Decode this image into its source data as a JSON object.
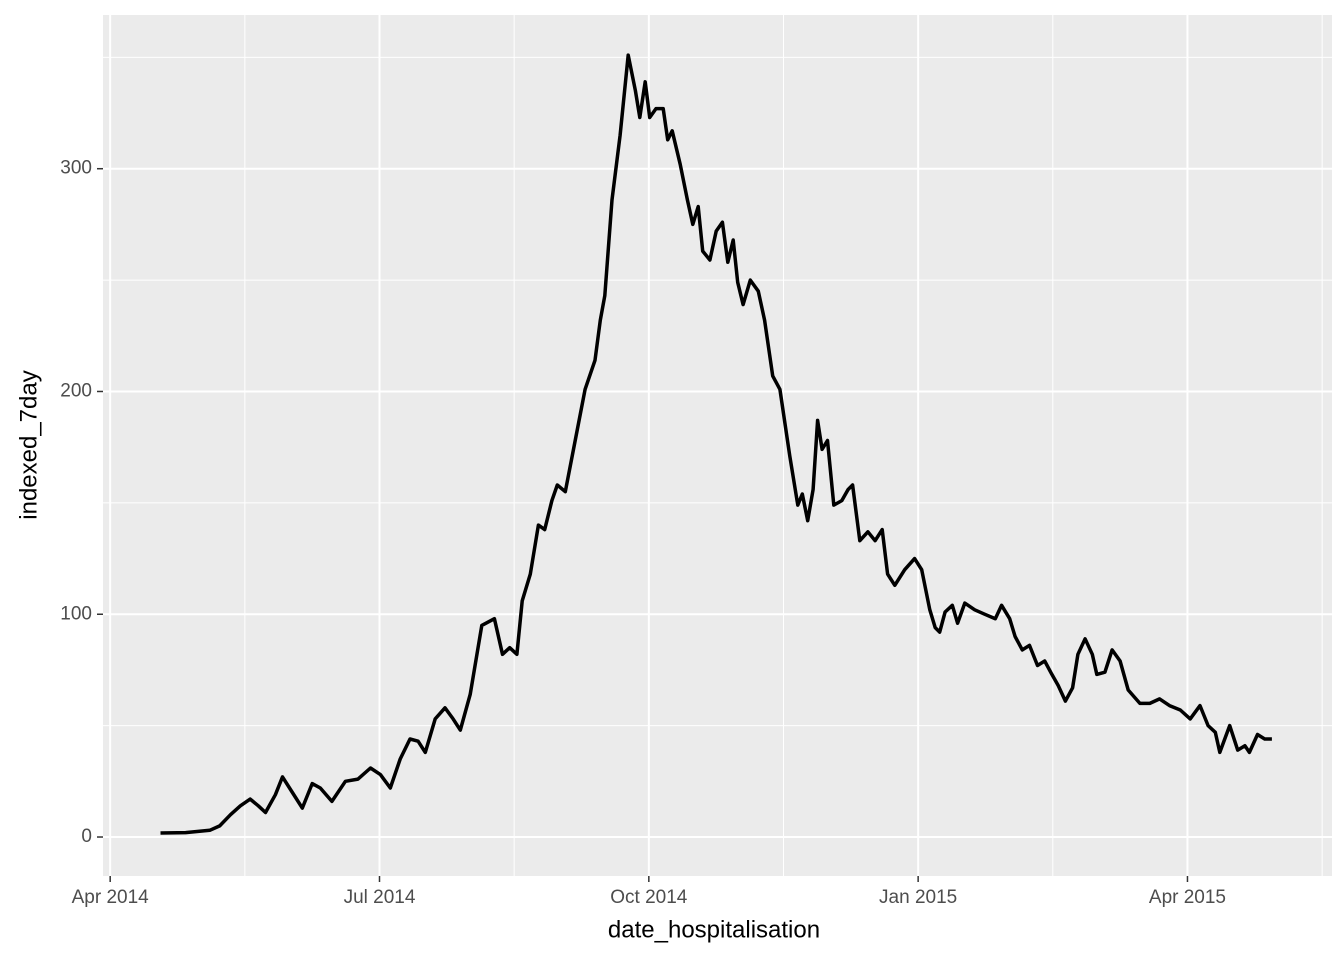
{
  "chart_data": {
    "type": "line",
    "x_label": "date_hospitalisation",
    "y_label": "indexed_7day",
    "color": "#000000",
    "x": [
      0.56,
      0.84,
      1.11,
      1.22,
      1.34,
      1.45,
      1.56,
      1.65,
      1.73,
      1.84,
      1.92,
      2.03,
      2.14,
      2.25,
      2.34,
      2.47,
      2.62,
      2.76,
      2.9,
      3.01,
      3.12,
      3.23,
      3.34,
      3.43,
      3.51,
      3.62,
      3.73,
      3.82,
      3.9,
      4.01,
      4.14,
      4.28,
      4.37,
      4.45,
      4.53,
      4.59,
      4.68,
      4.77,
      4.84,
      4.92,
      4.98,
      5.07,
      5.18,
      5.29,
      5.4,
      5.46,
      5.51,
      5.59,
      5.68,
      5.77,
      5.85,
      5.9,
      5.96,
      6.01,
      6.08,
      6.16,
      6.21,
      6.26,
      6.35,
      6.43,
      6.49,
      6.55,
      6.6,
      6.68,
      6.75,
      6.82,
      6.88,
      6.94,
      6.99,
      7.05,
      7.13,
      7.22,
      7.29,
      7.38,
      7.46,
      7.57,
      7.66,
      7.71,
      7.77,
      7.83,
      7.88,
      7.93,
      7.99,
      8.06,
      8.15,
      8.22,
      8.27,
      8.35,
      8.44,
      8.52,
      8.6,
      8.66,
      8.74,
      8.85,
      8.96,
      9.04,
      9.13,
      9.19,
      9.24,
      9.3,
      9.38,
      9.44,
      9.52,
      9.63,
      9.74,
      9.86,
      9.93,
      10.02,
      10.08,
      10.16,
      10.24,
      10.33,
      10.41,
      10.49,
      10.56,
      10.64,
      10.72,
      10.78,
      10.86,
      10.94,
      10.99,
      11.08,
      11.16,
      11.25,
      11.34,
      11.47,
      11.58,
      11.69,
      11.8,
      11.92,
      12.03,
      12.14,
      12.23,
      12.31,
      12.36,
      12.47,
      12.56,
      12.64,
      12.69,
      12.78,
      12.86,
      12.94
    ],
    "values": [
      1.8,
      2,
      3,
      5,
      10,
      14,
      17,
      14,
      11,
      19,
      27,
      20,
      13,
      24,
      22,
      16,
      25,
      26,
      31,
      28,
      22,
      35,
      44,
      43,
      38,
      53,
      58,
      53,
      48,
      64,
      95,
      98,
      82,
      85,
      82,
      106,
      118,
      140,
      138,
      151,
      158,
      155,
      178,
      201,
      214,
      232,
      243,
      286,
      315,
      351,
      335,
      323,
      339,
      323,
      327,
      327,
      313,
      317,
      302,
      286,
      275,
      283,
      263,
      259,
      272,
      276,
      258,
      268,
      249,
      239,
      250,
      245,
      232,
      207,
      201,
      171,
      149,
      154,
      142,
      156,
      187,
      174,
      178,
      149,
      151,
      156,
      158,
      133,
      137,
      133,
      138,
      118,
      113,
      120,
      125,
      120,
      102,
      94,
      92,
      101,
      104,
      96,
      105,
      102,
      100,
      98,
      104,
      98,
      90,
      84,
      86,
      77,
      79,
      73,
      68,
      61,
      67,
      82,
      89,
      82,
      73,
      74,
      84,
      79,
      66,
      60,
      60,
      62,
      59,
      57,
      53,
      59,
      50,
      47,
      38,
      50,
      39,
      41,
      38,
      46,
      44,
      44
    ],
    "xlim": [
      -0.08,
      13.61
    ],
    "xticks": [
      {
        "value": 0,
        "label": "Apr 2014"
      },
      {
        "value": 3,
        "label": "Jul 2014"
      },
      {
        "value": 6,
        "label": "Oct 2014"
      },
      {
        "value": 9,
        "label": "Jan 2015"
      },
      {
        "value": 12,
        "label": "Apr 2015"
      }
    ],
    "x_minor_ticks": [
      1.5,
      4.5,
      7.5,
      10.5,
      13.5
    ],
    "ylim": [
      -17.5,
      369
    ],
    "yticks": [
      0,
      100,
      200,
      300
    ],
    "y_minor_ticks": [
      50,
      150,
      250,
      350
    ],
    "grid": true
  }
}
